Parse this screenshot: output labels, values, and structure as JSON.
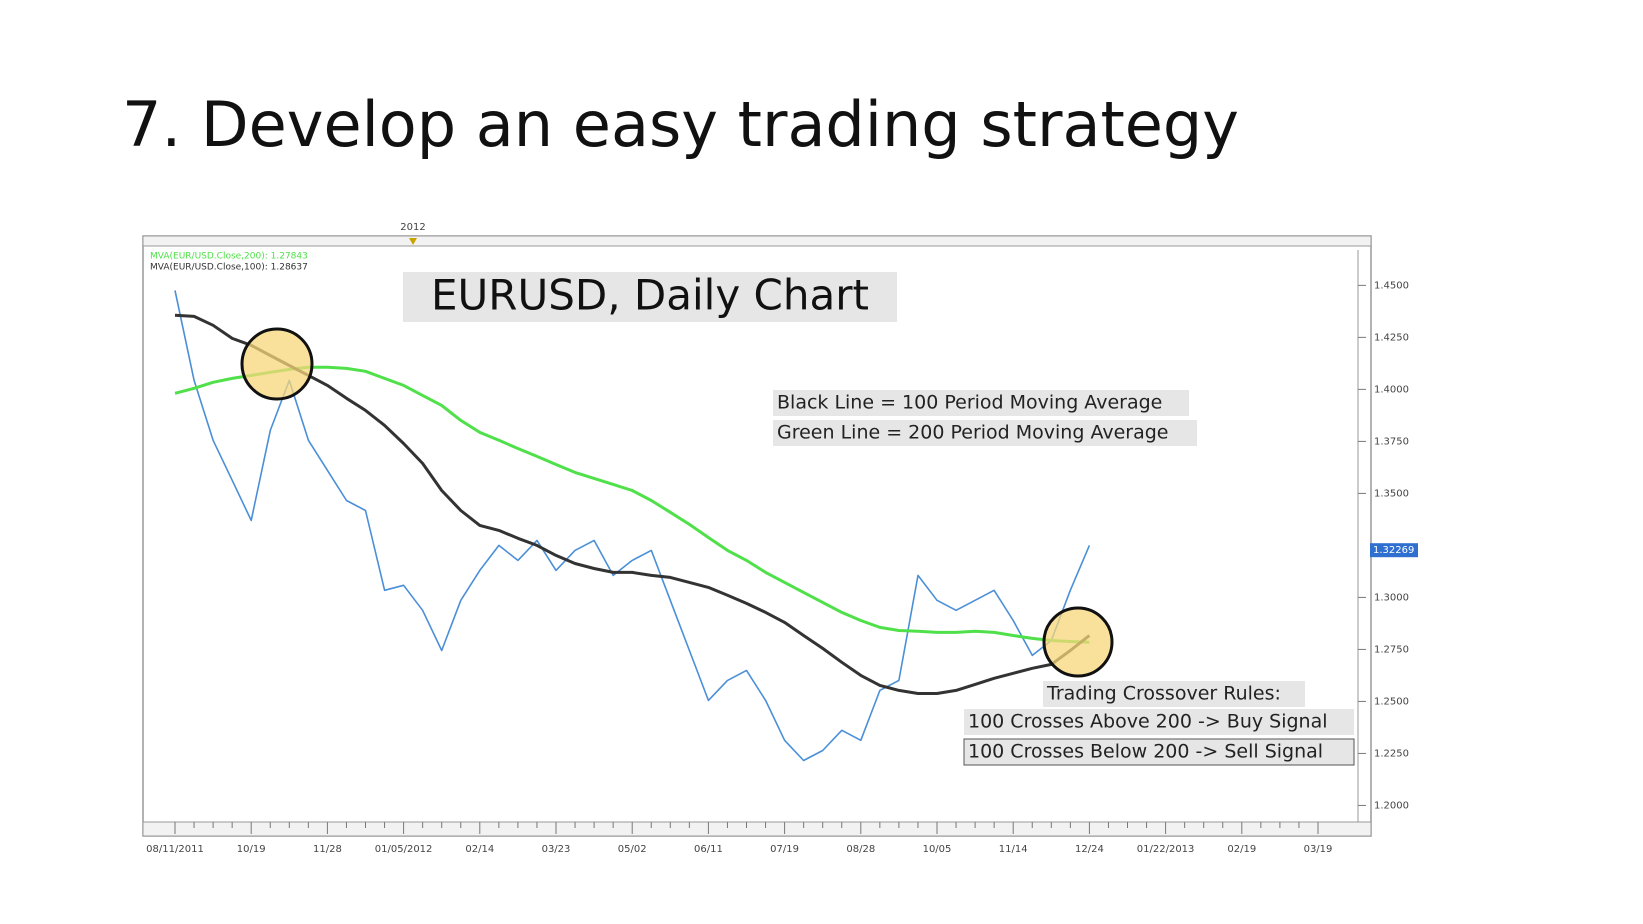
{
  "slide_title": "7. Develop an easy trading strategy",
  "chart_data": {
    "type": "line",
    "chart_label": "EURUSD, Daily Chart",
    "marker": "2012",
    "notes": [
      "Black Line = 100 Period Moving Average",
      "Green Line = 200 Period Moving Average"
    ],
    "rules_title": "Trading Crossover Rules:",
    "rules": [
      "100 Crosses Above 200 -> Buy Signal",
      "100 Crosses Below 200 -> Sell Signal"
    ],
    "last_price": 1.32269,
    "categories": [
      "08/11/2011",
      null,
      null,
      null,
      "10/19",
      null,
      null,
      null,
      "11/28",
      null,
      null,
      null,
      "01/05/2012",
      null,
      null,
      null,
      "02/14",
      null,
      null,
      null,
      "03/23",
      null,
      null,
      null,
      "05/02",
      null,
      null,
      null,
      "06/11",
      null,
      null,
      null,
      "07/19",
      null,
      null,
      null,
      "08/28",
      null,
      null,
      null,
      "10/05",
      null,
      null,
      null,
      "11/14",
      null,
      null,
      null,
      "12/24",
      null,
      null,
      null,
      "01/22/2013",
      null,
      null,
      null,
      "02/19",
      null,
      null,
      null,
      "03/19"
    ],
    "series": [
      {
        "color": "#4a8fd8",
        "values": [
          1.4476,
          1.4043,
          1.3755,
          1.3563,
          1.337,
          1.3803,
          1.4043,
          1.3755,
          1.3611,
          1.3466,
          1.3418,
          1.3034,
          1.3058,
          1.2938,
          1.2745,
          1.2986,
          1.313,
          1.325,
          1.3178,
          1.3274,
          1.313,
          1.3226,
          1.3274,
          1.3106,
          1.3178,
          1.3226,
          1.2986,
          1.2745,
          1.2505,
          1.2601,
          1.2649,
          1.2505,
          1.2313,
          1.2216,
          1.2264,
          1.2361,
          1.2313,
          1.2553,
          1.2601,
          1.3106,
          1.2986,
          1.2938,
          1.2986,
          1.3034,
          1.2889,
          1.2721,
          1.2793,
          1.3034,
          1.325,
          null,
          null,
          null,
          null,
          null,
          null,
          null,
          null,
          null,
          null,
          null,
          null
        ]
      },
      {
        "name": "MVA(EUR/USD.Close,200): 1.27843",
        "color": "#4fe04a",
        "values": [
          1.3981,
          1.4005,
          1.4034,
          1.4053,
          1.4067,
          1.4082,
          1.4096,
          1.4106,
          1.4106,
          1.4101,
          1.4087,
          1.4053,
          1.4019,
          1.3971,
          1.3923,
          1.3851,
          1.3793,
          1.3755,
          1.3716,
          1.3678,
          1.3639,
          1.3601,
          1.3572,
          1.3543,
          1.3514,
          1.3466,
          1.3409,
          1.3351,
          1.3288,
          1.3226,
          1.3178,
          1.312,
          1.3072,
          1.3024,
          1.2976,
          1.2928,
          1.2889,
          1.2856,
          1.2841,
          1.2837,
          1.2832,
          1.2832,
          1.2837,
          1.2832,
          1.2817,
          1.2803,
          1.2793,
          1.2788,
          1.2784,
          null,
          null,
          null,
          null,
          null,
          null,
          null,
          null,
          null,
          null,
          null,
          null
        ]
      },
      {
        "name": "MVA(EUR/USD.Close,100): 1.28637",
        "color": "#333333",
        "values": [
          1.4356,
          1.4351,
          1.4308,
          1.4245,
          1.4212,
          1.4163,
          1.4115,
          1.4067,
          1.4019,
          1.3957,
          1.3899,
          1.3827,
          1.374,
          1.3644,
          1.3514,
          1.3418,
          1.3346,
          1.3322,
          1.3284,
          1.325,
          1.3202,
          1.3163,
          1.3139,
          1.312,
          1.312,
          1.3106,
          1.3096,
          1.3072,
          1.3048,
          1.301,
          1.2971,
          1.2928,
          1.288,
          1.2817,
          1.2755,
          1.2688,
          1.2625,
          1.2577,
          1.2553,
          1.2538,
          1.2538,
          1.2553,
          1.2582,
          1.2611,
          1.2635,
          1.2659,
          1.2678,
          1.2745,
          1.2817,
          null,
          null,
          null,
          null,
          null,
          null,
          null,
          null,
          null,
          null,
          null,
          null
        ]
      }
    ],
    "ylim": [
      1.193,
      1.467
    ],
    "yticks": [
      {
        "value": 1.45,
        "label": "1.4500"
      },
      {
        "value": 1.425,
        "label": "1.4250"
      },
      {
        "value": 1.4,
        "label": "1.4000"
      },
      {
        "value": 1.375,
        "label": "1.3750"
      },
      {
        "value": 1.35,
        "label": "1.3500"
      },
      {
        "value": 1.3,
        "label": "1.3000"
      },
      {
        "value": 1.275,
        "label": "1.2750"
      },
      {
        "value": 1.25,
        "label": "1.2500"
      },
      {
        "value": 1.225,
        "label": "1.2250"
      },
      {
        "value": 1.2,
        "label": "1.2000"
      }
    ]
  }
}
